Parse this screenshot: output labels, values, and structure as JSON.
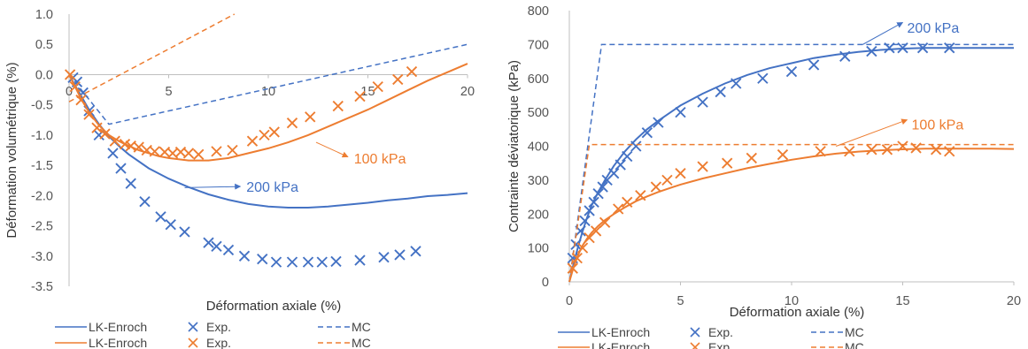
{
  "colors": {
    "blue": "#4472C4",
    "orange": "#ED7D31"
  },
  "chart_data": [
    {
      "type": "line",
      "ylabel": "Déformation volumétrique (%)",
      "xlabel": "Déformation axiale (%)",
      "xlim": [
        0,
        20
      ],
      "ylim": [
        -3.5,
        1.0
      ],
      "x_ticks": [
        "0",
        "5",
        "10",
        "15",
        "20"
      ],
      "y_ticks": [
        "1.0",
        "0.5",
        "0.0",
        "-0.5",
        "-1.0",
        "-1.5",
        "-2.0",
        "-2.5",
        "-3.0",
        "-3.5"
      ],
      "grid": false,
      "annotations": [
        {
          "label": "200 kPa",
          "color": "blue",
          "at": [
            8.9,
            -1.85
          ],
          "from": [
            5.8,
            -1.87
          ],
          "to": [
            8.6,
            -1.85
          ]
        },
        {
          "label": "100 kPa",
          "color": "orange",
          "at": [
            14.3,
            -1.38
          ],
          "from": [
            12.4,
            -1.12
          ],
          "to": [
            14.0,
            -1.36
          ]
        }
      ],
      "series": [
        {
          "name": "LK-Enroch",
          "kind": "line",
          "color": "blue",
          "x": [
            0,
            0.3,
            0.6,
            1,
            1.5,
            2,
            2.5,
            3,
            4,
            5,
            6,
            7,
            8,
            9,
            10,
            11,
            12,
            13,
            14,
            15,
            16,
            17,
            18,
            19,
            20
          ],
          "y": [
            0,
            -0.18,
            -0.35,
            -0.58,
            -0.82,
            -1.02,
            -1.18,
            -1.32,
            -1.55,
            -1.72,
            -1.86,
            -1.98,
            -2.07,
            -2.14,
            -2.18,
            -2.2,
            -2.2,
            -2.18,
            -2.15,
            -2.12,
            -2.08,
            -2.05,
            -2.01,
            -1.99,
            -1.96
          ]
        },
        {
          "name": "Exp.",
          "kind": "marker",
          "color": "blue",
          "x": [
            0.2,
            0.4,
            0.7,
            1.0,
            1.5,
            2.2,
            2.6,
            3.1,
            3.8,
            4.6,
            5.1,
            5.8,
            7.0,
            7.4,
            8.0,
            8.8,
            9.7,
            10.4,
            11.2,
            12.0,
            12.7,
            13.4,
            14.6,
            15.8,
            16.6,
            17.4
          ],
          "y": [
            -0.05,
            -0.12,
            -0.3,
            -0.6,
            -1.0,
            -1.3,
            -1.55,
            -1.8,
            -2.1,
            -2.35,
            -2.48,
            -2.6,
            -2.78,
            -2.84,
            -2.9,
            -3.0,
            -3.05,
            -3.1,
            -3.1,
            -3.1,
            -3.1,
            -3.09,
            -3.07,
            -3.02,
            -2.98,
            -2.92
          ]
        },
        {
          "name": "MC",
          "kind": "dashed",
          "color": "blue",
          "x": [
            0,
            2.0,
            20
          ],
          "y": [
            0,
            -0.82,
            0.5
          ]
        },
        {
          "name": "LK-Enroch",
          "kind": "line",
          "color": "orange",
          "x": [
            0,
            0.3,
            0.6,
            1,
            1.5,
            2,
            2.5,
            3,
            3.5,
            4,
            4.5,
            5,
            5.5,
            6,
            6.5,
            7,
            7.5,
            8,
            9,
            10,
            11,
            12,
            13,
            14,
            15,
            16,
            17,
            18,
            19,
            20
          ],
          "y": [
            0,
            -0.2,
            -0.4,
            -0.62,
            -0.84,
            -1.0,
            -1.1,
            -1.18,
            -1.25,
            -1.3,
            -1.35,
            -1.38,
            -1.4,
            -1.42,
            -1.42,
            -1.42,
            -1.4,
            -1.38,
            -1.3,
            -1.22,
            -1.12,
            -1.0,
            -0.86,
            -0.72,
            -0.58,
            -0.42,
            -0.26,
            -0.1,
            0.04,
            0.18
          ]
        },
        {
          "name": "Exp.",
          "kind": "marker",
          "color": "orange",
          "x": [
            0.05,
            0.3,
            0.6,
            1.0,
            1.4,
            1.8,
            2.3,
            2.8,
            3.1,
            3.5,
            3.9,
            4.3,
            4.8,
            5.2,
            5.6,
            6.0,
            6.5,
            7.4,
            8.2,
            9.2,
            9.8,
            10.3,
            11.2,
            12.1,
            13.5,
            14.6,
            15.5,
            16.5,
            17.2
          ],
          "y": [
            0.0,
            -0.2,
            -0.42,
            -0.66,
            -0.88,
            -0.98,
            -1.1,
            -1.15,
            -1.18,
            -1.2,
            -1.25,
            -1.27,
            -1.28,
            -1.3,
            -1.28,
            -1.3,
            -1.32,
            -1.27,
            -1.25,
            -1.1,
            -1.0,
            -0.95,
            -0.8,
            -0.7,
            -0.52,
            -0.36,
            -0.2,
            -0.08,
            0.05
          ]
        },
        {
          "name": "MC",
          "kind": "dashed",
          "color": "orange",
          "x": [
            0,
            8.3
          ],
          "y": [
            -0.45,
            1.0
          ]
        }
      ],
      "legend": {
        "rows": [
          [
            {
              "label": "LK-Enroch",
              "kind": "line",
              "color": "blue"
            },
            {
              "label": "Exp.",
              "kind": "marker",
              "color": "blue"
            },
            {
              "label": "MC",
              "kind": "dashed",
              "color": "blue"
            }
          ],
          [
            {
              "label": "LK-Enroch",
              "kind": "line",
              "color": "orange"
            },
            {
              "label": "Exp.",
              "kind": "marker",
              "color": "orange"
            },
            {
              "label": "MC",
              "kind": "dashed",
              "color": "orange"
            }
          ]
        ]
      }
    },
    {
      "type": "line",
      "ylabel": "Contrainte déviatorique (kPa)",
      "xlabel": "Déformation axiale (%)",
      "xlim": [
        0,
        20
      ],
      "ylim": [
        0,
        800
      ],
      "x_ticks": [
        "0",
        "5",
        "10",
        "15",
        "20"
      ],
      "y_ticks": [
        "0",
        "100",
        "200",
        "300",
        "400",
        "500",
        "600",
        "700",
        "800"
      ],
      "grid": false,
      "annotations": [
        {
          "label": "200 kPa",
          "color": "blue",
          "at": [
            15.2,
            750
          ],
          "from": [
            13.2,
            700
          ],
          "to": [
            15.0,
            765
          ]
        },
        {
          "label": "100 kPa",
          "color": "orange",
          "at": [
            15.4,
            465
          ],
          "from": [
            12.0,
            400
          ],
          "to": [
            15.2,
            478
          ]
        }
      ],
      "series": [
        {
          "name": "LK-Enroch",
          "kind": "line",
          "color": "blue",
          "x": [
            0,
            0.2,
            0.4,
            0.6,
            0.8,
            1.0,
            1.3,
            1.6,
            2.0,
            2.5,
            3,
            3.5,
            4,
            5,
            6,
            7,
            8,
            9,
            10,
            11,
            12,
            13,
            14,
            15,
            16,
            17,
            18,
            19,
            20
          ],
          "y": [
            0,
            55,
            105,
            150,
            190,
            225,
            265,
            300,
            342,
            385,
            420,
            450,
            475,
            520,
            555,
            585,
            610,
            630,
            645,
            660,
            670,
            678,
            684,
            688,
            690,
            690,
            690,
            690,
            690
          ]
        },
        {
          "name": "Exp.",
          "kind": "marker",
          "color": "blue",
          "x": [
            0.15,
            0.3,
            0.5,
            0.7,
            0.9,
            1.1,
            1.3,
            1.5,
            1.7,
            2.0,
            2.3,
            2.6,
            3.0,
            3.5,
            4.0,
            5.0,
            6.0,
            6.8,
            7.5,
            8.7,
            10.0,
            11.0,
            12.4,
            13.6,
            14.4,
            15.0,
            15.9,
            17.1
          ],
          "y": [
            70,
            110,
            150,
            180,
            210,
            235,
            260,
            280,
            300,
            320,
            345,
            370,
            400,
            440,
            470,
            500,
            530,
            560,
            585,
            600,
            620,
            640,
            665,
            680,
            690,
            690,
            690,
            690
          ]
        },
        {
          "name": "MC",
          "kind": "dashed",
          "color": "blue",
          "x": [
            0,
            1.45,
            20
          ],
          "y": [
            0,
            700,
            700
          ]
        },
        {
          "name": "LK-Enroch",
          "kind": "line",
          "color": "orange",
          "x": [
            0,
            0.2,
            0.4,
            0.6,
            0.8,
            1.0,
            1.3,
            1.6,
            2.0,
            2.5,
            3,
            3.5,
            4,
            5,
            6,
            7,
            8,
            9,
            10,
            11,
            12,
            13,
            14,
            15,
            16,
            17,
            18,
            19,
            20
          ],
          "y": [
            0,
            45,
            80,
            108,
            128,
            145,
            165,
            182,
            200,
            220,
            238,
            252,
            265,
            287,
            305,
            320,
            335,
            348,
            360,
            370,
            378,
            384,
            388,
            391,
            393,
            393,
            393,
            393,
            392
          ]
        },
        {
          "name": "Exp.",
          "kind": "marker",
          "color": "orange",
          "x": [
            0.15,
            0.35,
            0.6,
            0.9,
            1.2,
            1.6,
            2.2,
            2.6,
            3.2,
            3.9,
            4.4,
            5.0,
            6.0,
            7.1,
            8.2,
            9.6,
            11.3,
            12.6,
            13.6,
            14.3,
            15.0,
            15.6,
            16.5,
            17.1
          ],
          "y": [
            40,
            70,
            100,
            130,
            150,
            175,
            215,
            235,
            255,
            280,
            300,
            320,
            340,
            350,
            365,
            375,
            385,
            385,
            390,
            390,
            400,
            395,
            390,
            385
          ]
        },
        {
          "name": "MC",
          "kind": "dashed",
          "color": "orange",
          "x": [
            0,
            0.9,
            20
          ],
          "y": [
            0,
            405,
            405
          ]
        }
      ],
      "legend": {
        "rows": [
          [
            {
              "label": "LK-Enroch",
              "kind": "line",
              "color": "blue"
            },
            {
              "label": "Exp.",
              "kind": "marker",
              "color": "blue"
            },
            {
              "label": "MC",
              "kind": "dashed",
              "color": "blue"
            }
          ],
          [
            {
              "label": "LK-Enroch",
              "kind": "line",
              "color": "orange"
            },
            {
              "label": "Exp.",
              "kind": "marker",
              "color": "orange"
            },
            {
              "label": "MC",
              "kind": "dashed",
              "color": "orange"
            }
          ]
        ]
      }
    }
  ]
}
